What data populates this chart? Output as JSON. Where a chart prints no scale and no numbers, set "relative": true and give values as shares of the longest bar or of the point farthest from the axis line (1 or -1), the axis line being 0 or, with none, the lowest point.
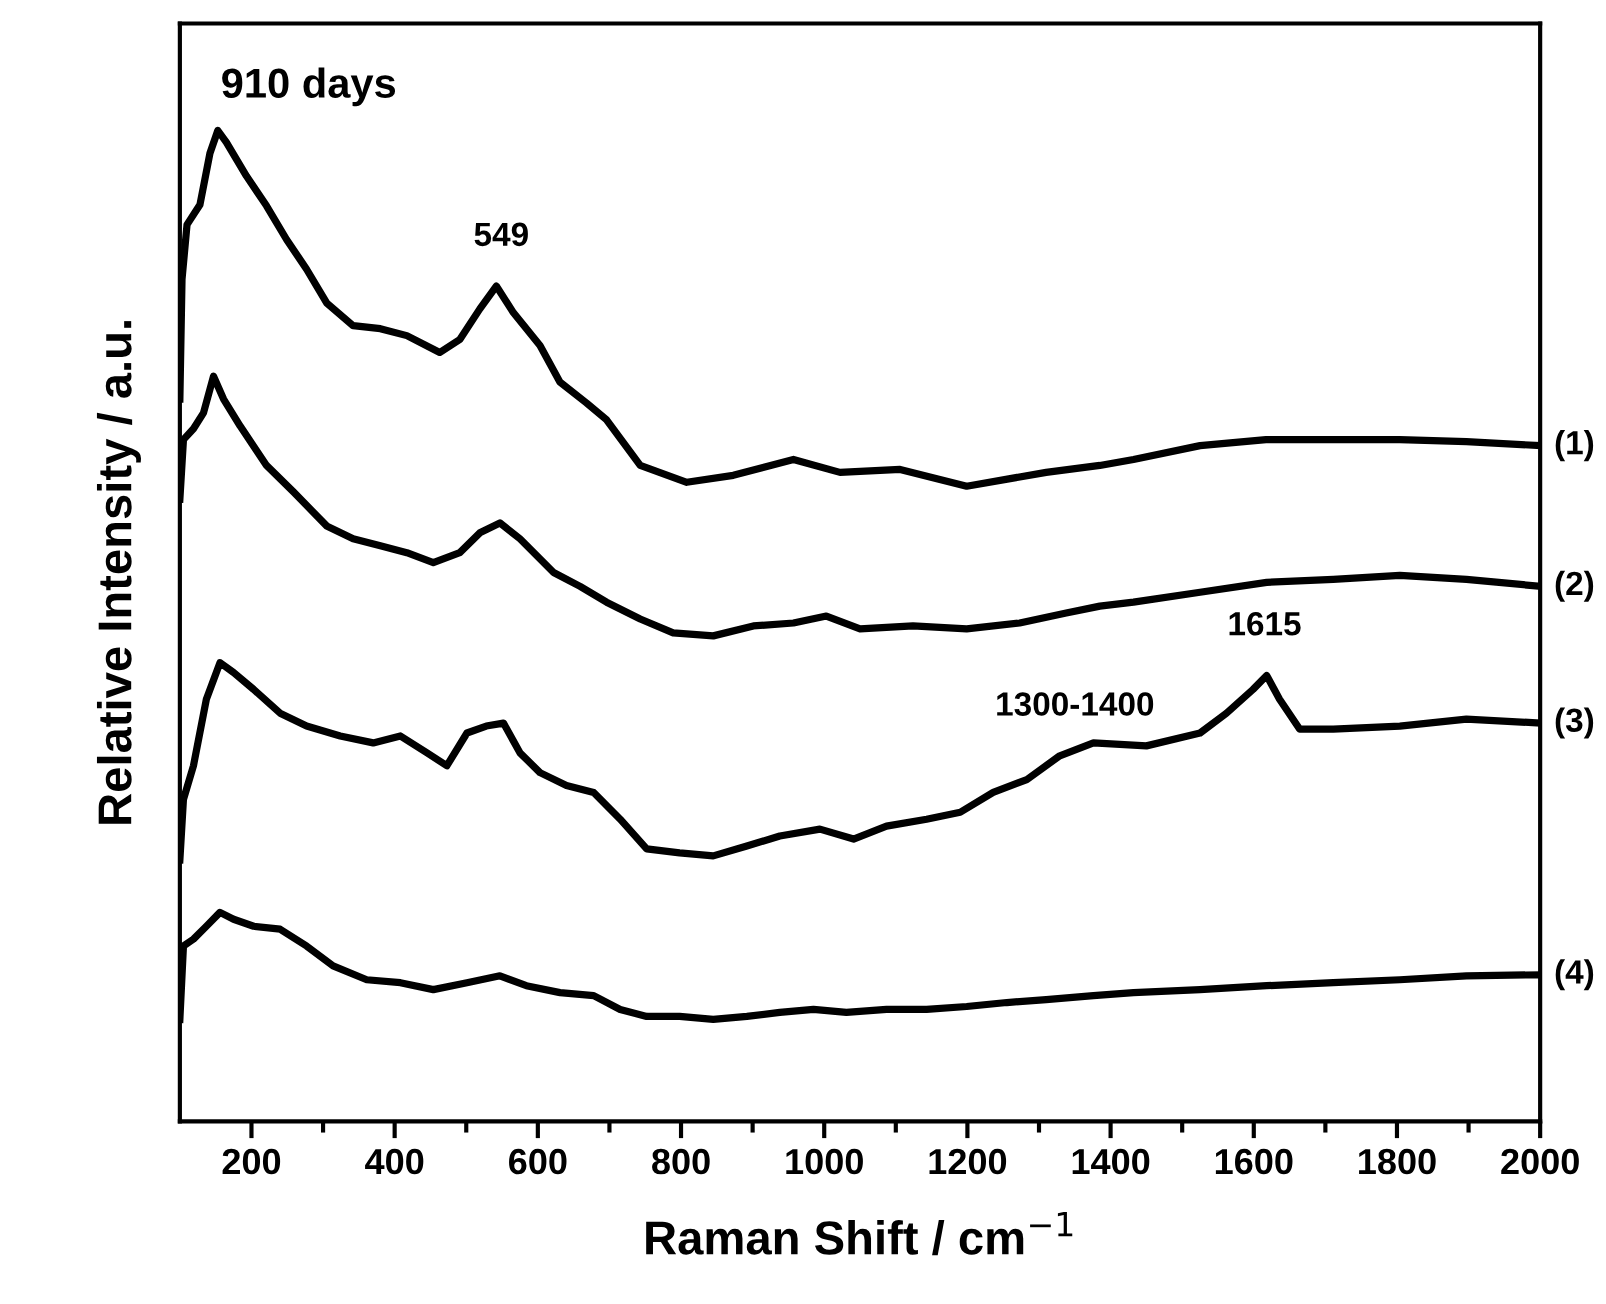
{
  "chart_data": {
    "type": "line",
    "relative": true,
    "xlabel": "Raman Shift / cm$^{−1}$",
    "ylabel": "Relative Intensity / a.u.",
    "xlim": [
      100,
      2000
    ],
    "xticks": [
      200,
      {
        "value": 300,
        "label": null
      },
      400,
      {
        "value": 500,
        "label": null
      },
      600,
      {
        "value": 700,
        "label": null
      },
      800,
      {
        "value": 900,
        "label": null
      },
      1000,
      {
        "value": 1100,
        "label": null
      },
      1200,
      {
        "value": 1300,
        "label": null
      },
      1400,
      {
        "value": 1500,
        "label": null
      },
      1600,
      {
        "value": 1700,
        "label": null
      },
      1800,
      {
        "value": 1900,
        "label": null
      },
      2000
    ],
    "tick_labels": "x",
    "grid": false,
    "marker": "none",
    "line_style": "solid",
    "annotations": [
      "910 days",
      {
        "text": "549",
        "x": 549,
        "y": 0.843
      },
      {
        "text": "1300-1400",
        "x": 1350,
        "y": 0.369
      },
      {
        "text": "1615",
        "x": 1615,
        "y": 0.45
      }
    ],
    "series": [
      {
        "name": "(1)",
        "color": "#000000",
        "x": [
          100,
          103,
          110,
          128,
          142,
          153,
          165,
          193,
          221,
          249,
          277,
          305,
          342,
          380,
          417,
          463,
          491,
          519,
          542,
          566,
          603,
          631,
          668,
          696,
          743,
          808,
          873,
          957,
          1022,
          1106,
          1199,
          1310,
          1385,
          1432,
          1525,
          1617,
          1711,
          1804,
          1897,
          2000
        ],
        "values": [
          0.729,
          0.85,
          0.905,
          0.925,
          0.977,
          1.0,
          0.988,
          0.954,
          0.924,
          0.89,
          0.86,
          0.826,
          0.803,
          0.8,
          0.793,
          0.776,
          0.789,
          0.82,
          0.843,
          0.816,
          0.783,
          0.746,
          0.725,
          0.708,
          0.662,
          0.645,
          0.652,
          0.668,
          0.655,
          0.658,
          0.641,
          0.655,
          0.662,
          0.668,
          0.682,
          0.688,
          0.688,
          0.688,
          0.686,
          0.682
        ]
      },
      {
        "name": "(2)",
        "color": "#000000",
        "x": [
          100,
          105,
          119,
          133,
          147,
          161,
          184,
          221,
          259,
          305,
          342,
          380,
          417,
          454,
          491,
          519,
          547,
          575,
          622,
          659,
          696,
          743,
          789,
          845,
          901,
          957,
          1003,
          1050,
          1124,
          1199,
          1273,
          1338,
          1385,
          1432,
          1525,
          1618,
          1711,
          1804,
          1897,
          2000
        ],
        "values": [
          0.628,
          0.688,
          0.699,
          0.715,
          0.752,
          0.729,
          0.702,
          0.662,
          0.635,
          0.601,
          0.588,
          0.581,
          0.574,
          0.564,
          0.574,
          0.594,
          0.604,
          0.588,
          0.554,
          0.54,
          0.524,
          0.507,
          0.493,
          0.49,
          0.5,
          0.503,
          0.51,
          0.497,
          0.5,
          0.497,
          0.503,
          0.513,
          0.52,
          0.524,
          0.534,
          0.544,
          0.547,
          0.551,
          0.547,
          0.54
        ]
      },
      {
        "name": "(3)",
        "color": "#000000",
        "x": [
          100,
          105,
          119,
          137,
          156,
          175,
          203,
          240,
          277,
          324,
          370,
          408,
          445,
          473,
          501,
          528,
          552,
          575,
          603,
          640,
          678,
          715,
          752,
          798,
          845,
          892,
          938,
          994,
          1041,
          1087,
          1143,
          1190,
          1236,
          1283,
          1329,
          1376,
          1450,
          1525,
          1562,
          1599,
          1618,
          1636,
          1664,
          1711,
          1804,
          1897,
          2000
        ],
        "values": [
          0.264,
          0.325,
          0.359,
          0.426,
          0.463,
          0.453,
          0.436,
          0.412,
          0.399,
          0.389,
          0.382,
          0.389,
          0.372,
          0.359,
          0.392,
          0.399,
          0.402,
          0.372,
          0.352,
          0.339,
          0.332,
          0.305,
          0.275,
          0.271,
          0.268,
          0.278,
          0.288,
          0.295,
          0.285,
          0.298,
          0.305,
          0.312,
          0.332,
          0.345,
          0.369,
          0.382,
          0.379,
          0.392,
          0.412,
          0.436,
          0.45,
          0.426,
          0.396,
          0.396,
          0.399,
          0.406,
          0.402
        ]
      },
      {
        "name": "(4)",
        "color": "#000000",
        "x": [
          100,
          105,
          119,
          137,
          156,
          175,
          203,
          240,
          277,
          314,
          361,
          408,
          454,
          501,
          547,
          584,
          631,
          678,
          715,
          752,
          798,
          845,
          892,
          938,
          985,
          1031,
          1087,
          1143,
          1199,
          1255,
          1310,
          1376,
          1432,
          1525,
          1618,
          1711,
          1804,
          1897,
          2000
        ],
        "values": [
          0.103,
          0.177,
          0.184,
          0.197,
          0.211,
          0.204,
          0.197,
          0.194,
          0.177,
          0.157,
          0.143,
          0.14,
          0.133,
          0.14,
          0.147,
          0.137,
          0.13,
          0.127,
          0.113,
          0.106,
          0.106,
          0.103,
          0.106,
          0.11,
          0.113,
          0.11,
          0.113,
          0.113,
          0.116,
          0.12,
          0.123,
          0.127,
          0.13,
          0.133,
          0.137,
          0.14,
          0.143,
          0.147,
          0.148
        ]
      }
    ]
  }
}
